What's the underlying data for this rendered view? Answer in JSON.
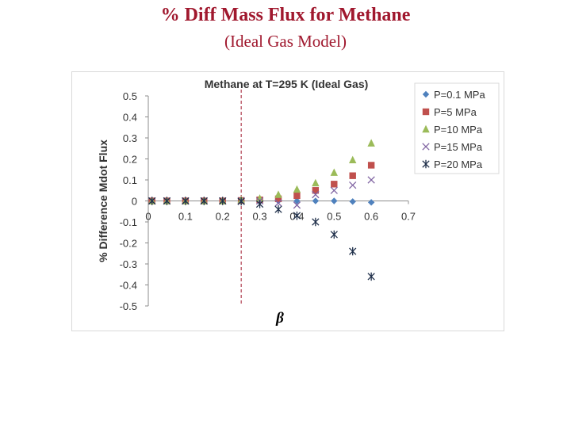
{
  "slide": {
    "title": "% Diff Mass Flux for Methane",
    "subtitle": "(Ideal Gas Model)"
  },
  "chart_data": {
    "type": "scatter",
    "title": "Methane at T=295 K (Ideal Gas)",
    "xlabel": "β",
    "ylabel": "% Difference Mdot Flux",
    "xlim": [
      0,
      0.7
    ],
    "ylim": [
      -0.5,
      0.5
    ],
    "xticks": [
      "0",
      "0.1",
      "0.2",
      "0.3",
      "0.4",
      "0.5",
      "0.6",
      "0.7"
    ],
    "yticks": [
      "0.5",
      "0.4",
      "0.3",
      "0.2",
      "0.1",
      "0",
      "-0.1",
      "-0.2",
      "-0.3",
      "-0.4",
      "-0.5"
    ],
    "grid": false,
    "legend_position": "right",
    "reference_line": {
      "x": 0.25,
      "style": "dashed",
      "color": "#a0182e"
    },
    "series": [
      {
        "name": "P=0.1 MPa",
        "marker": "diamond",
        "color": "#4f81bd",
        "x": [
          0.01,
          0.05,
          0.1,
          0.15,
          0.2,
          0.25,
          0.3,
          0.35,
          0.4,
          0.45,
          0.5,
          0.55,
          0.6
        ],
        "y": [
          0,
          0,
          0,
          0,
          0,
          0,
          0,
          0,
          0,
          0,
          0,
          -0.003,
          -0.007
        ]
      },
      {
        "name": "P=5 MPa",
        "marker": "square",
        "color": "#c0504d",
        "x": [
          0.01,
          0.05,
          0.1,
          0.15,
          0.2,
          0.25,
          0.3,
          0.35,
          0.4,
          0.45,
          0.5,
          0.55,
          0.6
        ],
        "y": [
          0,
          0,
          0,
          0,
          0,
          0.002,
          0.005,
          0.01,
          0.025,
          0.05,
          0.08,
          0.12,
          0.17
        ]
      },
      {
        "name": "P=10 MPa",
        "marker": "triangle",
        "color": "#9bbb59",
        "x": [
          0.01,
          0.05,
          0.1,
          0.15,
          0.2,
          0.25,
          0.3,
          0.35,
          0.4,
          0.45,
          0.5,
          0.55,
          0.6
        ],
        "y": [
          0,
          0,
          0,
          0,
          0,
          0.005,
          0.012,
          0.03,
          0.055,
          0.085,
          0.135,
          0.195,
          0.275
        ]
      },
      {
        "name": "P=15 MPa",
        "marker": "x",
        "color": "#8064a2",
        "x": [
          0.01,
          0.05,
          0.1,
          0.15,
          0.2,
          0.25,
          0.3,
          0.35,
          0.4,
          0.45,
          0.5,
          0.55,
          0.6
        ],
        "y": [
          0,
          0,
          0,
          0,
          0,
          0,
          0,
          -0.01,
          -0.02,
          0.03,
          0.05,
          0.075,
          0.1
        ]
      },
      {
        "name": "P=20 MPa",
        "marker": "star",
        "color": "#1f2f4a",
        "x": [
          0.01,
          0.05,
          0.1,
          0.15,
          0.2,
          0.25,
          0.3,
          0.35,
          0.4,
          0.45,
          0.5,
          0.55,
          0.6
        ],
        "y": [
          0,
          0,
          0,
          0,
          0,
          -0.002,
          -0.015,
          -0.04,
          -0.07,
          -0.1,
          -0.16,
          -0.24,
          -0.36
        ]
      }
    ]
  }
}
